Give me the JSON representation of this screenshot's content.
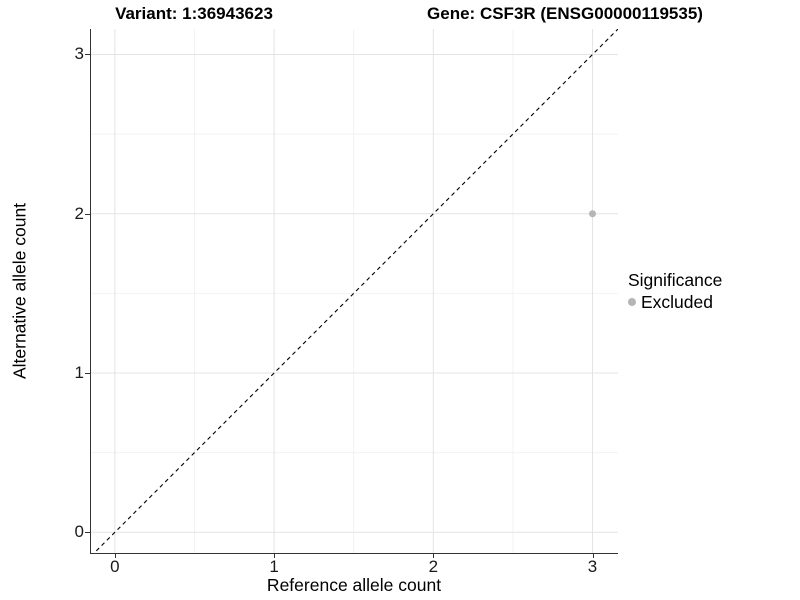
{
  "chart_data": {
    "type": "scatter",
    "title_left": "Variant: 1:36943623",
    "title_right": "Gene: CSF3R (ENSG00000119535)",
    "xlabel": "Reference allele count",
    "ylabel": "Alternative allele count",
    "xlim": [
      -0.15,
      3.16
    ],
    "ylim": [
      -0.13,
      3.16
    ],
    "x_ticks": [
      0,
      1,
      2,
      3
    ],
    "y_ticks": [
      0,
      1,
      2,
      3
    ],
    "grid": {
      "major": true,
      "minor": true
    },
    "reference_line": {
      "type": "identity_y_equals_x",
      "style": "dashed",
      "color": "#000000"
    },
    "series": [
      {
        "name": "Excluded",
        "color": "#b5b5b5",
        "points": [
          {
            "x": 3,
            "y": 2
          }
        ]
      }
    ],
    "legend": {
      "title": "Significance",
      "position": "right",
      "entries": [
        {
          "label": "Excluded",
          "color": "#b5b5b5",
          "marker": "circle"
        }
      ]
    }
  },
  "colors": {
    "background": "#ffffff",
    "axis_line": "#333333",
    "grid_major": "#e4e4e4",
    "grid_minor": "#f2f2f2",
    "text": "#000000",
    "point": "#b5b5b5"
  }
}
